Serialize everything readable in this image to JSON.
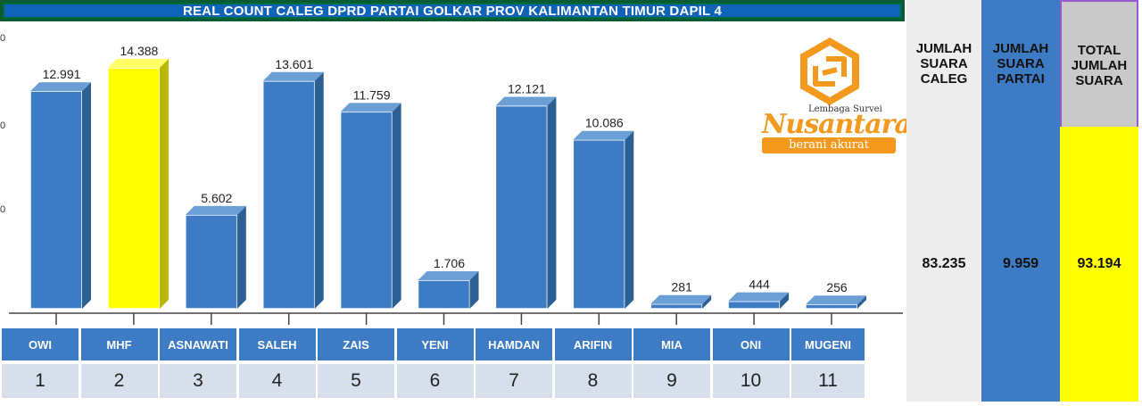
{
  "chart_data": {
    "type": "bar",
    "title": "REAL COUNT CALEG DPRD PARTAI GOLKAR PROV KALIMANTAN TIMUR DAPIL 4",
    "categories": [
      "OWI",
      "MHF",
      "ASNAWATI",
      "SALEH",
      "ZAIS",
      "YENI",
      "HAMDAN",
      "ARIFIN",
      "MIA",
      "ONI",
      "MUGENI"
    ],
    "numbers": [
      "1",
      "2",
      "3",
      "4",
      "5",
      "6",
      "7",
      "8",
      "9",
      "10",
      "11"
    ],
    "values": [
      12991,
      14388,
      5602,
      13601,
      11759,
      1706,
      12121,
      10086,
      281,
      444,
      256
    ],
    "value_labels": [
      "12.991",
      "14.388",
      "5.602",
      "13.601",
      "11.759",
      "1.706",
      "12.121",
      "10.086",
      "281",
      "444",
      "256"
    ],
    "highlight_index": 1,
    "ylim": [
      0,
      15000
    ],
    "bar_color": "#3D7CC4",
    "highlight_color": "#FFFF00"
  },
  "logo": {
    "line1": "Lembaga Survei",
    "brand": "Nusantara",
    "tagline": "berani akurat",
    "color": "#F39A1E"
  },
  "summary": {
    "caleg": {
      "label_lines": [
        "JUMLAH",
        "SUARA",
        "CALEG"
      ],
      "value": "83.235",
      "head_bg": "#EDEDED",
      "val_bg": "#EDEDED"
    },
    "partai": {
      "label_lines": [
        "JUMLAH",
        "SUARA",
        "PARTAI"
      ],
      "value": "9.959",
      "head_bg": "#3D7CC4",
      "val_bg": "#3D7CC4"
    },
    "total": {
      "label_lines": [
        "TOTAL",
        "JUMLAH",
        "SUARA"
      ],
      "value": "93.194",
      "head_bg": "#C9C9C9",
      "val_bg": "#FFFF00"
    }
  }
}
